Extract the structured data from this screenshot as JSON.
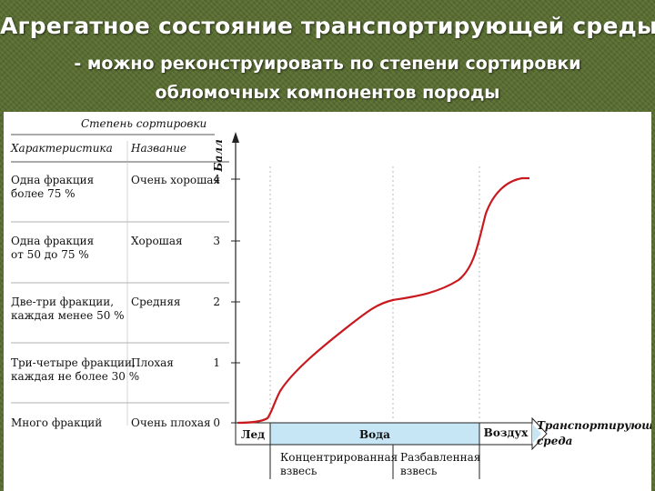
{
  "title": "Агрегатное состояние транспортирующей среды",
  "subtitle_line1": "- можно реконструировать по степени сортировки",
  "subtitle_line2": "обломочных компонентов породы",
  "diagram": {
    "table_title": "Степень сортировки",
    "col_characteristic": "Характеристика",
    "col_name": "Название",
    "y_axis_label": "Балл",
    "rows": [
      {
        "char1": "Одна фракция",
        "char2": "более 75 %",
        "name": "Очень хорошая",
        "score": "4"
      },
      {
        "char1": "Одна фракция",
        "char2": "от 50 до 75 %",
        "name": "Хорошая",
        "score": "3"
      },
      {
        "char1": "Две-три фракции,",
        "char2": "каждая менее 50 %",
        "name": "Средняя",
        "score": "2"
      },
      {
        "char1": "Три-четыре фракции,",
        "char2": "каждая не более 30 %",
        "name": "Плохая",
        "score": "1"
      },
      {
        "char1": "Много фракций",
        "char2": "",
        "name": "Очень плохая",
        "score": "0"
      }
    ],
    "media": {
      "ice": "Лед",
      "water": "Вода",
      "air": "Воздух",
      "x_axis_label_1": "Транспортирующая",
      "x_axis_label_2": "среда",
      "water_sub1_line1": "Концентрированная",
      "water_sub1_line2": "взвесь",
      "water_sub2_line1": "Разбавленная",
      "water_sub2_line2": "взвесь"
    },
    "colors": {
      "curve": "#c8191f",
      "water_band": "#c6e6f6",
      "background": "#5a6f31"
    }
  }
}
